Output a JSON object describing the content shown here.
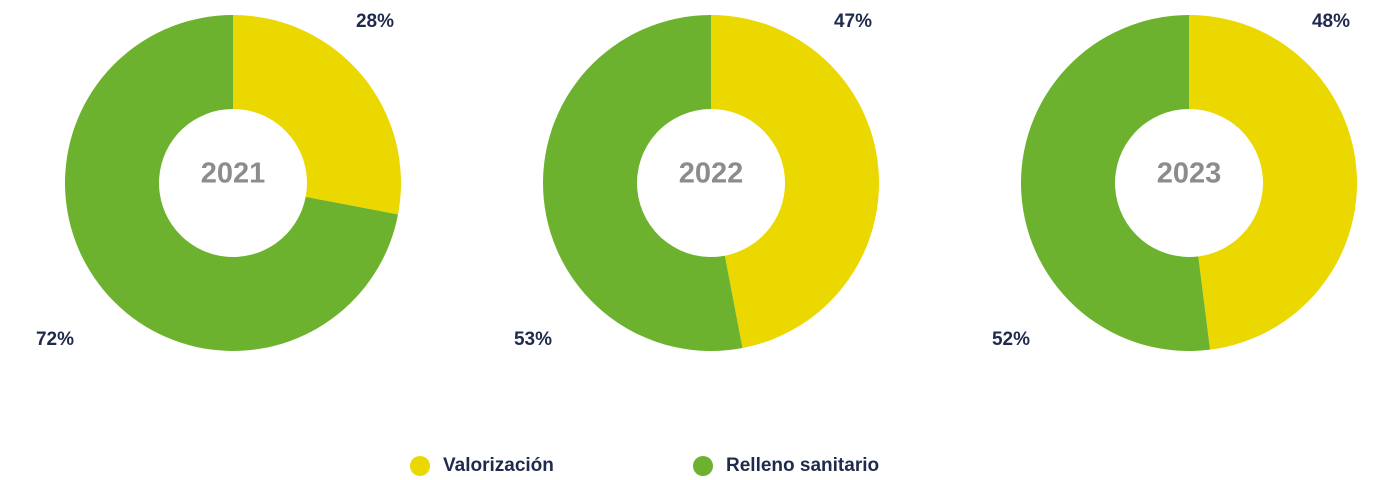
{
  "chart_data": [
    {
      "type": "pie",
      "title": "2021",
      "values": [
        28,
        72
      ],
      "value_labels": [
        "28%",
        "72%"
      ]
    },
    {
      "type": "pie",
      "title": "2022",
      "values": [
        47,
        53
      ],
      "value_labels": [
        "47%",
        "53%"
      ]
    },
    {
      "type": "pie",
      "title": "2023",
      "values": [
        48,
        52
      ],
      "value_labels": [
        "48%",
        "52%"
      ]
    }
  ],
  "legend": [
    {
      "name": "Valorización",
      "color": "#ebd800"
    },
    {
      "name": "Relleno sanitario",
      "color": "#6db22f"
    }
  ]
}
